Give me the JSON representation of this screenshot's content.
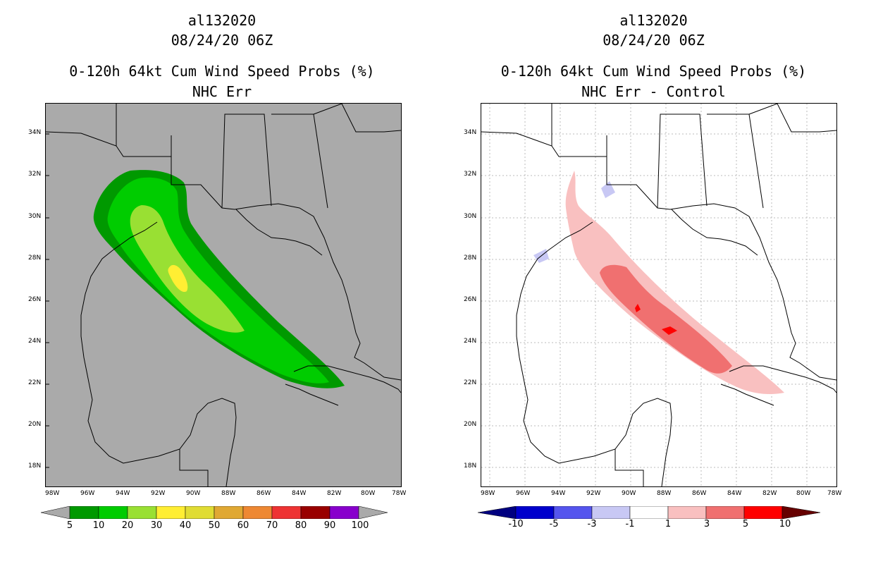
{
  "colors": {
    "land_gray": "#aaaaaa",
    "panel_white": "#ffffff",
    "green_dark": "#009900",
    "green": "#00cc00",
    "green_yellow": "#99e033",
    "yellow": "#ffee33",
    "red_light": "#f9c0c0",
    "red_mid": "#f07070",
    "red": "#ff0000",
    "blue_light": "#c8c8f4"
  },
  "left": {
    "storm_id": "al132020",
    "datetime": "08/24/20 06Z",
    "title": "0-120h 64kt Cum Wind Speed Probs (%)",
    "subtitle": "NHC Err",
    "colorbar": {
      "colors": [
        "#009900",
        "#00cc00",
        "#99e033",
        "#ffee33",
        "#e0dc33",
        "#e0a833",
        "#ee8833",
        "#ee3333",
        "#990000",
        "#8800cc"
      ],
      "labels": [
        "5",
        "10",
        "20",
        "30",
        "40",
        "50",
        "60",
        "70",
        "80",
        "90",
        "100"
      ]
    }
  },
  "right": {
    "storm_id": "al132020",
    "datetime": "08/24/20 06Z",
    "title": "0-120h 64kt Cum Wind Speed Probs (%)",
    "subtitle": "NHC Err - Control",
    "colorbar": {
      "colors": [
        "#0000cc",
        "#5555ee",
        "#c8c8f4",
        "#ffffff",
        "#f9c0c0",
        "#f07070",
        "#ff0000"
      ],
      "labels": [
        "-10",
        "-5",
        "-3",
        "-1",
        "1",
        "3",
        "5",
        "10"
      ]
    }
  },
  "axes": {
    "x_ticks": [
      "98W",
      "96W",
      "94W",
      "92W",
      "90W",
      "88W",
      "86W",
      "84W",
      "82W",
      "80W",
      "78W"
    ],
    "y_ticks": [
      "34N",
      "32N",
      "30N",
      "28N",
      "26N",
      "24N",
      "22N",
      "20N",
      "18N"
    ]
  }
}
